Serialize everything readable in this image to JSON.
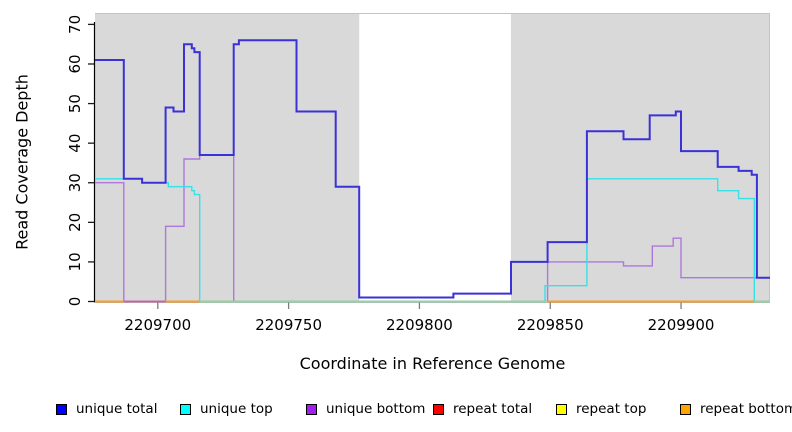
{
  "chart_data": {
    "type": "line",
    "title": "",
    "xlabel": "Coordinate in Reference Genome",
    "ylabel": "Read Coverage Depth",
    "xlim": [
      2209676,
      2209934
    ],
    "ylim": [
      0,
      72
    ],
    "x_ticks": [
      2209700,
      2209750,
      2209800,
      2209850,
      2209900
    ],
    "y_ticks": [
      0,
      10,
      20,
      30,
      40,
      50,
      60,
      70
    ],
    "grid": "off",
    "background_color": "#ffffff",
    "shade_color": "#d9d9d9",
    "shaded_regions": [
      {
        "from": 2209676,
        "to": 2209777
      },
      {
        "from": 2209835,
        "to": 2209934
      }
    ],
    "series": [
      {
        "name": "repeat total",
        "legend_color": "#ff0000",
        "line_color": "#e02020",
        "line_width": 1,
        "steps": [
          [
            2209676,
            0
          ]
        ]
      },
      {
        "name": "repeat top",
        "legend_color": "#ffff00",
        "line_color": "#ffff00",
        "line_width": 1,
        "steps": [
          [
            2209676,
            0
          ]
        ]
      },
      {
        "name": "repeat bottom",
        "legend_color": "#ffa500",
        "line_color": "#ff9c20",
        "line_width": 1.8,
        "steps": [
          [
            2209676,
            0
          ]
        ]
      },
      {
        "name": "unique bottom",
        "legend_color": "#a020f0",
        "line_color": "#ad77dd",
        "line_width": 1.4,
        "steps": [
          [
            2209676,
            30
          ],
          [
            2209687,
            0
          ],
          [
            2209703,
            19
          ],
          [
            2209710,
            36
          ],
          [
            2209716,
            37
          ],
          [
            2209729,
            0
          ],
          [
            2209849,
            10
          ],
          [
            2209878,
            9
          ],
          [
            2209889,
            14
          ],
          [
            2209897,
            16
          ],
          [
            2209900,
            6
          ]
        ]
      },
      {
        "name": "unique top",
        "legend_color": "#00ffff",
        "line_color": "#36e2e8",
        "line_width": 1.4,
        "steps": [
          [
            2209676,
            31
          ],
          [
            2209694,
            30
          ],
          [
            2209704,
            29
          ],
          [
            2209713,
            28
          ],
          [
            2209714,
            27
          ],
          [
            2209716,
            0
          ],
          [
            2209848,
            4
          ],
          [
            2209864,
            31
          ],
          [
            2209914,
            28
          ],
          [
            2209922,
            26
          ],
          [
            2209928,
            0
          ]
        ]
      },
      {
        "name": "unique total",
        "legend_color": "#0000ff",
        "line_color": "#3a31d6",
        "line_width": 2,
        "steps": [
          [
            2209676,
            61
          ],
          [
            2209687,
            31
          ],
          [
            2209694,
            30
          ],
          [
            2209703,
            49
          ],
          [
            2209706,
            48
          ],
          [
            2209710,
            65
          ],
          [
            2209713,
            64
          ],
          [
            2209714,
            63
          ],
          [
            2209716,
            37
          ],
          [
            2209729,
            65
          ],
          [
            2209731,
            66
          ],
          [
            2209753,
            48
          ],
          [
            2209768,
            29
          ],
          [
            2209777,
            1
          ],
          [
            2209813,
            2
          ],
          [
            2209835,
            10
          ],
          [
            2209849,
            15
          ],
          [
            2209864,
            43
          ],
          [
            2209878,
            41
          ],
          [
            2209888,
            47
          ],
          [
            2209898,
            48
          ],
          [
            2209900,
            38
          ],
          [
            2209914,
            34
          ],
          [
            2209922,
            33
          ],
          [
            2209927,
            32
          ],
          [
            2209929,
            6
          ]
        ]
      }
    ],
    "baseline_overlap_segments": [
      {
        "from": 2209676,
        "to": 2209687,
        "color": "#ff9c20"
      },
      {
        "from": 2209687,
        "to": 2209703,
        "color": "#c463ab"
      },
      {
        "from": 2209703,
        "to": 2209716,
        "color": "#ff9c20"
      },
      {
        "from": 2209716,
        "to": 2209849,
        "color": "#95d59b"
      },
      {
        "from": 2209849,
        "to": 2209928,
        "color": "#ff9c20"
      },
      {
        "from": 2209928,
        "to": 2209934,
        "color": "#95d59b"
      }
    ],
    "legend_position": "bottom"
  },
  "legend": {
    "items": [
      {
        "label": "unique total",
        "color": "#0000ff"
      },
      {
        "label": "unique top",
        "color": "#00ffff"
      },
      {
        "label": "unique bottom",
        "color": "#a020f0"
      },
      {
        "label": "repeat total",
        "color": "#ff0000"
      },
      {
        "label": "repeat top",
        "color": "#ffff00"
      },
      {
        "label": "repeat bottom",
        "color": "#ffa500"
      }
    ]
  }
}
